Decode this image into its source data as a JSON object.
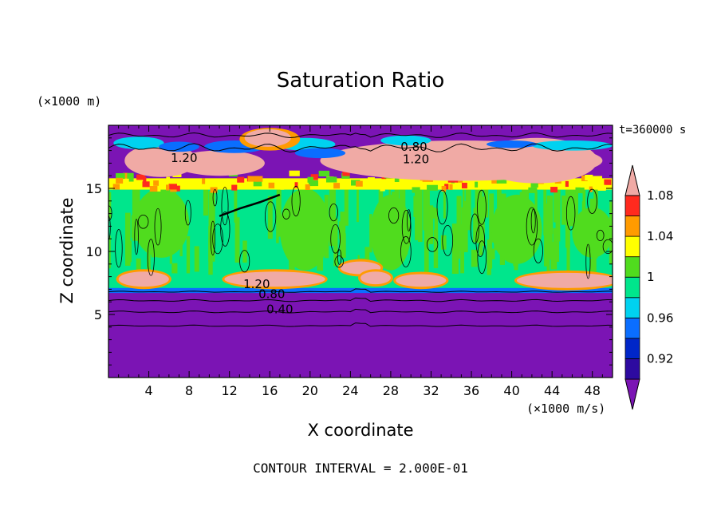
{
  "title": "Saturation Ratio",
  "y_unit": "(×1000 m)",
  "x_unit": "(×1000 m/s)",
  "time_label": "t=360000 s",
  "x_axis_title": "X coordinate",
  "y_axis_title": "Z coordinate",
  "contour_note": "CONTOUR INTERVAL = 2.000E-01",
  "chart_data": {
    "type": "heatmap",
    "title": "Saturation Ratio",
    "xlabel": "X coordinate",
    "ylabel": "Z coordinate",
    "xlim": [
      0,
      50
    ],
    "ylim": [
      0,
      20
    ],
    "x_ticks": [
      4,
      8,
      12,
      16,
      20,
      24,
      28,
      32,
      36,
      40,
      44,
      48
    ],
    "y_ticks": [
      5,
      10,
      15
    ],
    "colorbar": {
      "levels": [
        0.9,
        0.92,
        0.94,
        0.96,
        0.98,
        1.0,
        1.02,
        1.04,
        1.06,
        1.08,
        1.1
      ],
      "labels": [
        "0.92",
        "0.96",
        "1",
        "1.04",
        "1.08"
      ],
      "colors": [
        "#7b14b4",
        "#2d0aa0",
        "#0026c8",
        "#0a6eff",
        "#00d2f0",
        "#00e68c",
        "#50dc1e",
        "#ffff00",
        "#ff9b00",
        "#ff2a1e",
        "#f0aaa5"
      ],
      "extend": "both"
    },
    "contour_labels": [
      {
        "text": "1.20",
        "x": 7.5,
        "z": 17.4
      },
      {
        "text": "0.80",
        "x": 30.3,
        "z": 18.3
      },
      {
        "text": "1.20",
        "x": 30.5,
        "z": 17.3
      },
      {
        "text": "1.20",
        "x": 14.7,
        "z": 7.4
      },
      {
        "text": "0.80",
        "x": 16.2,
        "z": 6.6
      },
      {
        "text": "0.40",
        "x": 17.0,
        "z": 5.4
      }
    ],
    "bands": [
      {
        "z0": 0,
        "z1": 4.1,
        "value": "<0.9"
      },
      {
        "z0": 4.1,
        "z1": 6.8,
        "value": "<0.9"
      },
      {
        "z0": 6.8,
        "z1": 7.5,
        "value": "0.98"
      },
      {
        "z0": 7.5,
        "z1": 15.2,
        "value": "1.0"
      },
      {
        "z0": 15.2,
        "z1": 19.5,
        "value": "mixed"
      }
    ]
  }
}
